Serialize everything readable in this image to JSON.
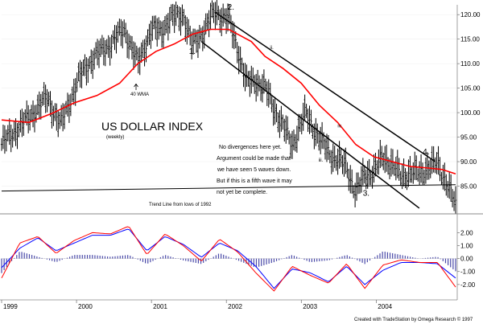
{
  "chart_data": {
    "type": "line",
    "title": "US DOLLAR INDEX",
    "subtitle": "(weekly)",
    "footer": "Created with TradeStation by Omega Research © 1997",
    "x_labels": [
      "1999",
      "2000",
      "2001",
      "2002",
      "2003",
      "2004"
    ],
    "price_panel": {
      "ylim": [
        80,
        122
      ],
      "y_ticks": [
        {
          "value": 85,
          "label": "85.00"
        },
        {
          "value": 90,
          "label": "90.00"
        },
        {
          "value": 95,
          "label": "95.00"
        },
        {
          "value": 100,
          "label": "100.00"
        },
        {
          "value": 105,
          "label": "105.00"
        },
        {
          "value": 110,
          "label": "110.00"
        },
        {
          "value": 115,
          "label": "115.00"
        },
        {
          "value": 120,
          "label": "120.00"
        }
      ],
      "price_series": {
        "t": [
          0,
          0.06,
          0.1,
          0.13,
          0.17,
          0.2,
          0.24,
          0.27,
          0.3,
          0.33,
          0.35,
          0.37,
          0.4,
          0.42,
          0.44,
          0.47,
          0.5,
          0.52,
          0.54,
          0.56,
          0.58,
          0.61,
          0.64,
          0.67,
          0.7,
          0.73,
          0.76,
          0.78,
          0.8,
          0.82,
          0.84,
          0.86,
          0.88,
          0.9,
          0.92,
          0.94,
          0.96,
          0.98,
          1.0
        ],
        "values": [
          93.5,
          99,
          103,
          97.5,
          107,
          111,
          114,
          117,
          110,
          117,
          116.5,
          119,
          120,
          113.5,
          116,
          120.5,
          119,
          113,
          106,
          106.5,
          105,
          99,
          93.5,
          100,
          94.5,
          91,
          89,
          83.5,
          87.5,
          88,
          91,
          89.5,
          87,
          88,
          87.5,
          89,
          89.5,
          86,
          80.8
        ]
      },
      "moving_average": {
        "label": "40 WMA",
        "color": "#ff0000",
        "t": [
          0,
          0.06,
          0.11,
          0.16,
          0.21,
          0.26,
          0.3,
          0.34,
          0.38,
          0.42,
          0.46,
          0.5,
          0.52,
          0.55,
          0.58,
          0.62,
          0.66,
          0.7,
          0.74,
          0.78,
          0.82,
          0.86,
          0.9,
          0.94,
          0.97,
          1.0
        ],
        "values": [
          98.5,
          98,
          99.8,
          102,
          103.5,
          106,
          110,
          112.5,
          114,
          116,
          117,
          117,
          116,
          114.5,
          111.5,
          109,
          106,
          101.5,
          98,
          93.5,
          91,
          90,
          89,
          88.7,
          88.4,
          87.5
        ]
      },
      "trend_line": {
        "label": "Trend Line from lows of 1992",
        "from": [
          0,
          84
        ],
        "to": [
          1.0,
          85.3
        ]
      },
      "channel_upper": {
        "from": [
          0.47,
          120.5
        ],
        "to": [
          0.955,
          90
        ]
      },
      "channel_lower": {
        "from": [
          0.44,
          114.5
        ],
        "to": [
          0.92,
          80.5
        ]
      },
      "wave_labels": [
        {
          "label": "1.",
          "t": 0.42,
          "value": 112
        },
        {
          "label": "2.",
          "t": 0.505,
          "value": 121
        },
        {
          "label": "i.",
          "t": 0.575,
          "value": 104
        },
        {
          "label": "ii.",
          "t": 0.595,
          "value": 113
        },
        {
          "label": "iii.",
          "t": 0.703,
          "value": 90
        },
        {
          "label": "iv.",
          "t": 0.745,
          "value": 97
        },
        {
          "label": "v.",
          "t": 0.805,
          "value": 85
        },
        {
          "label": "3.",
          "t": 0.803,
          "value": 83
        },
        {
          "label": "4.",
          "t": 0.935,
          "value": 91.5
        }
      ],
      "annotation_lines": [
        "No divergences here yet.",
        "Argument could be made that",
        "we have seen 5 waves down.",
        "But if this is a fifth wave it may",
        "not yet be complete."
      ]
    },
    "oscillator_panel": {
      "ylim": [
        -3,
        3.2
      ],
      "y_ticks": [
        {
          "value": 2,
          "label": "2.00"
        },
        {
          "value": 1,
          "label": "1.00"
        },
        {
          "value": 0,
          "label": "0.00"
        },
        {
          "value": -1,
          "label": "-1.00"
        },
        {
          "value": -2,
          "label": "-2.00"
        }
      ],
      "fast_color": "#ff0000",
      "slow_color": "#0000ff",
      "histogram_color": "#4a4aa8",
      "t": [
        0,
        0.04,
        0.08,
        0.12,
        0.16,
        0.2,
        0.24,
        0.28,
        0.32,
        0.36,
        0.4,
        0.44,
        0.48,
        0.52,
        0.56,
        0.6,
        0.64,
        0.68,
        0.72,
        0.76,
        0.8,
        0.84,
        0.88,
        0.92,
        0.96,
        1.0
      ],
      "fast": [
        -1.5,
        1.2,
        1.7,
        0.4,
        1.4,
        2.0,
        1.9,
        2.5,
        0.3,
        1.9,
        1.0,
        -0.2,
        1.5,
        0.5,
        -1.1,
        -2.5,
        -0.6,
        -1.3,
        -1.9,
        -0.4,
        -2.3,
        -0.5,
        -0.1,
        -0.3,
        -0.3,
        -2.2
      ],
      "slow": [
        -0.7,
        0.8,
        1.6,
        0.6,
        1.2,
        1.8,
        1.8,
        2.3,
        0.6,
        1.7,
        1.1,
        0.1,
        1.2,
        0.6,
        -0.6,
        -2.3,
        -0.8,
        -1.1,
        -1.8,
        -0.6,
        -2.0,
        -0.9,
        -0.3,
        -0.3,
        -0.4,
        -1.5
      ]
    }
  }
}
